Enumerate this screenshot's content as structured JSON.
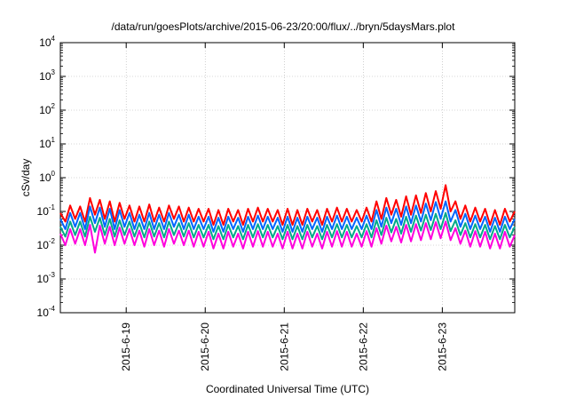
{
  "chart_data": {
    "type": "line",
    "title": "/data/run/goesPlots/archive/2015-06-23/20:00/flux/../bryn/5daysMars.plot",
    "xlabel": "Coordinated Universal Time (UTC)",
    "ylabel": "cSv/day",
    "yscale": "log",
    "ylim": [
      0.0001,
      10000
    ],
    "xlim": [
      "2015-06-18 04:00",
      "2015-06-23 22:00"
    ],
    "yticks": [
      {
        "base": "10",
        "exp": "-4",
        "value": 0.0001
      },
      {
        "base": "10",
        "exp": "-3",
        "value": 0.001
      },
      {
        "base": "10",
        "exp": "-2",
        "value": 0.01
      },
      {
        "base": "10",
        "exp": "-1",
        "value": 0.1
      },
      {
        "base": "10",
        "exp": "0",
        "value": 1
      },
      {
        "base": "10",
        "exp": "1",
        "value": 10
      },
      {
        "base": "10",
        "exp": "2",
        "value": 100
      },
      {
        "base": "10",
        "exp": "3",
        "value": 1000
      },
      {
        "base": "10",
        "exp": "4",
        "value": 10000
      }
    ],
    "xticks": [
      {
        "label": "2015-6-19",
        "value": "2015-06-19 00:00"
      },
      {
        "label": "2015-6-20",
        "value": "2015-06-20 00:00"
      },
      {
        "label": "2015-6-21",
        "value": "2015-06-21 00:00"
      },
      {
        "label": "2015-6-22",
        "value": "2015-06-22 00:00"
      },
      {
        "label": "2015-6-23",
        "value": "2015-06-23 00:00"
      }
    ],
    "grid": true,
    "series": [
      {
        "color": "#ff0000",
        "x": [
          "2015-06-18 04:00",
          "2015-06-18 05:30",
          "2015-06-18 07:00",
          "2015-06-18 08:30",
          "2015-06-18 10:00",
          "2015-06-18 11:30",
          "2015-06-18 13:00",
          "2015-06-18 14:30",
          "2015-06-18 16:00",
          "2015-06-18 17:30",
          "2015-06-18 19:00",
          "2015-06-18 20:30",
          "2015-06-18 22:00",
          "2015-06-18 23:30",
          "2015-06-19 01:00",
          "2015-06-19 02:30",
          "2015-06-19 04:00",
          "2015-06-19 05:30",
          "2015-06-19 07:00",
          "2015-06-19 08:30",
          "2015-06-19 10:00",
          "2015-06-19 11:30",
          "2015-06-19 13:00",
          "2015-06-19 14:30",
          "2015-06-19 16:00",
          "2015-06-19 17:30",
          "2015-06-19 19:00",
          "2015-06-19 20:30",
          "2015-06-19 22:00",
          "2015-06-19 23:30",
          "2015-06-20 01:00",
          "2015-06-20 02:30",
          "2015-06-20 04:00",
          "2015-06-20 05:30",
          "2015-06-20 07:00",
          "2015-06-20 08:30",
          "2015-06-20 10:00",
          "2015-06-20 11:30",
          "2015-06-20 13:00",
          "2015-06-20 14:30",
          "2015-06-20 16:00",
          "2015-06-20 17:30",
          "2015-06-20 19:00",
          "2015-06-20 20:30",
          "2015-06-20 22:00",
          "2015-06-20 23:30",
          "2015-06-21 01:00",
          "2015-06-21 02:30",
          "2015-06-21 04:00",
          "2015-06-21 05:30",
          "2015-06-21 07:00",
          "2015-06-21 08:30",
          "2015-06-21 10:00",
          "2015-06-21 11:30",
          "2015-06-21 13:00",
          "2015-06-21 14:30",
          "2015-06-21 16:00",
          "2015-06-21 17:30",
          "2015-06-21 19:00",
          "2015-06-21 20:30",
          "2015-06-21 22:00",
          "2015-06-21 23:30",
          "2015-06-22 01:00",
          "2015-06-22 02:30",
          "2015-06-22 04:00",
          "2015-06-22 05:30",
          "2015-06-22 07:00",
          "2015-06-22 08:30",
          "2015-06-22 10:00",
          "2015-06-22 11:30",
          "2015-06-22 13:00",
          "2015-06-22 14:30",
          "2015-06-22 16:00",
          "2015-06-22 17:30",
          "2015-06-22 19:00",
          "2015-06-22 20:30",
          "2015-06-22 22:00",
          "2015-06-22 23:30",
          "2015-06-23 01:00",
          "2015-06-23 02:30",
          "2015-06-23 04:00",
          "2015-06-23 05:30",
          "2015-06-23 07:00",
          "2015-06-23 08:30",
          "2015-06-23 10:00",
          "2015-06-23 11:30",
          "2015-06-23 13:00",
          "2015-06-23 14:30",
          "2015-06-23 16:00",
          "2015-06-23 17:30",
          "2015-06-23 19:00",
          "2015-06-23 20:30",
          "2015-06-23 22:00"
        ],
        "y": [
          0.09,
          0.05,
          0.15,
          0.06,
          0.14,
          0.05,
          0.25,
          0.08,
          0.22,
          0.06,
          0.2,
          0.05,
          0.18,
          0.06,
          0.15,
          0.05,
          0.14,
          0.05,
          0.16,
          0.05,
          0.13,
          0.05,
          0.15,
          0.06,
          0.14,
          0.05,
          0.13,
          0.05,
          0.12,
          0.05,
          0.12,
          0.04,
          0.11,
          0.04,
          0.12,
          0.05,
          0.11,
          0.04,
          0.12,
          0.05,
          0.13,
          0.05,
          0.12,
          0.05,
          0.11,
          0.04,
          0.12,
          0.04,
          0.11,
          0.04,
          0.12,
          0.05,
          0.11,
          0.04,
          0.12,
          0.05,
          0.13,
          0.05,
          0.12,
          0.05,
          0.11,
          0.05,
          0.13,
          0.05,
          0.2,
          0.06,
          0.25,
          0.08,
          0.22,
          0.07,
          0.28,
          0.08,
          0.3,
          0.09,
          0.35,
          0.1,
          0.4,
          0.12,
          0.6,
          0.1,
          0.2,
          0.06,
          0.15,
          0.05,
          0.13,
          0.05,
          0.12,
          0.04,
          0.11,
          0.04,
          0.12,
          0.05,
          0.1
        ]
      },
      {
        "color": "#0066ff",
        "x": [
          "2015-06-18 04:00",
          "2015-06-18 05:30",
          "2015-06-18 07:00",
          "2015-06-18 08:30",
          "2015-06-18 10:00",
          "2015-06-18 11:30",
          "2015-06-18 13:00",
          "2015-06-18 14:30",
          "2015-06-18 16:00",
          "2015-06-18 17:30",
          "2015-06-18 19:00",
          "2015-06-18 20:30",
          "2015-06-18 22:00",
          "2015-06-18 23:30",
          "2015-06-19 01:00",
          "2015-06-19 02:30",
          "2015-06-19 04:00",
          "2015-06-19 05:30",
          "2015-06-19 07:00",
          "2015-06-19 08:30",
          "2015-06-19 10:00",
          "2015-06-19 11:30",
          "2015-06-19 13:00",
          "2015-06-19 14:30",
          "2015-06-19 16:00",
          "2015-06-19 17:30",
          "2015-06-19 19:00",
          "2015-06-19 20:30",
          "2015-06-19 22:00",
          "2015-06-19 23:30",
          "2015-06-20 01:00",
          "2015-06-20 02:30",
          "2015-06-20 04:00",
          "2015-06-20 05:30",
          "2015-06-20 07:00",
          "2015-06-20 08:30",
          "2015-06-20 10:00",
          "2015-06-20 11:30",
          "2015-06-20 13:00",
          "2015-06-20 14:30",
          "2015-06-20 16:00",
          "2015-06-20 17:30",
          "2015-06-20 19:00",
          "2015-06-20 20:30",
          "2015-06-20 22:00",
          "2015-06-20 23:30",
          "2015-06-21 01:00",
          "2015-06-21 02:30",
          "2015-06-21 04:00",
          "2015-06-21 05:30",
          "2015-06-21 07:00",
          "2015-06-21 08:30",
          "2015-06-21 10:00",
          "2015-06-21 11:30",
          "2015-06-21 13:00",
          "2015-06-21 14:30",
          "2015-06-21 16:00",
          "2015-06-21 17:30",
          "2015-06-21 19:00",
          "2015-06-21 20:30",
          "2015-06-21 22:00",
          "2015-06-21 23:30",
          "2015-06-22 01:00",
          "2015-06-22 02:30",
          "2015-06-22 04:00",
          "2015-06-22 05:30",
          "2015-06-22 07:00",
          "2015-06-22 08:30",
          "2015-06-22 10:00",
          "2015-06-22 11:30",
          "2015-06-22 13:00",
          "2015-06-22 14:30",
          "2015-06-22 16:00",
          "2015-06-22 17:30",
          "2015-06-22 19:00",
          "2015-06-22 20:30",
          "2015-06-22 22:00",
          "2015-06-22 23:30",
          "2015-06-23 01:00",
          "2015-06-23 02:30",
          "2015-06-23 04:00",
          "2015-06-23 05:30",
          "2015-06-23 07:00",
          "2015-06-23 08:30",
          "2015-06-23 10:00",
          "2015-06-23 11:30",
          "2015-06-23 13:00",
          "2015-06-23 14:30",
          "2015-06-23 16:00",
          "2015-06-23 17:30",
          "2015-06-23 19:00",
          "2015-06-23 20:30",
          "2015-06-23 22:00"
        ],
        "y": [
          0.06,
          0.03,
          0.09,
          0.035,
          0.09,
          0.03,
          0.14,
          0.045,
          0.13,
          0.035,
          0.12,
          0.03,
          0.11,
          0.035,
          0.09,
          0.03,
          0.08,
          0.03,
          0.09,
          0.03,
          0.08,
          0.03,
          0.09,
          0.035,
          0.08,
          0.03,
          0.08,
          0.03,
          0.07,
          0.03,
          0.07,
          0.025,
          0.065,
          0.025,
          0.07,
          0.03,
          0.065,
          0.025,
          0.07,
          0.03,
          0.075,
          0.03,
          0.07,
          0.03,
          0.065,
          0.025,
          0.07,
          0.025,
          0.065,
          0.025,
          0.07,
          0.03,
          0.065,
          0.025,
          0.07,
          0.03,
          0.075,
          0.03,
          0.07,
          0.03,
          0.065,
          0.03,
          0.075,
          0.03,
          0.11,
          0.035,
          0.13,
          0.045,
          0.12,
          0.04,
          0.14,
          0.045,
          0.15,
          0.05,
          0.17,
          0.055,
          0.19,
          0.06,
          0.2,
          0.05,
          0.11,
          0.035,
          0.085,
          0.03,
          0.075,
          0.03,
          0.07,
          0.025,
          0.065,
          0.025,
          0.07,
          0.03,
          0.06
        ]
      },
      {
        "color": "#00aa88",
        "x": [
          "2015-06-18 04:00",
          "2015-06-18 05:30",
          "2015-06-18 07:00",
          "2015-06-18 08:30",
          "2015-06-18 10:00",
          "2015-06-18 11:30",
          "2015-06-18 13:00",
          "2015-06-18 14:30",
          "2015-06-18 16:00",
          "2015-06-18 17:30",
          "2015-06-18 19:00",
          "2015-06-18 20:30",
          "2015-06-18 22:00",
          "2015-06-18 23:30",
          "2015-06-19 01:00",
          "2015-06-19 02:30",
          "2015-06-19 04:00",
          "2015-06-19 05:30",
          "2015-06-19 07:00",
          "2015-06-19 08:30",
          "2015-06-19 10:00",
          "2015-06-19 11:30",
          "2015-06-19 13:00",
          "2015-06-19 14:30",
          "2015-06-19 16:00",
          "2015-06-19 17:30",
          "2015-06-19 19:00",
          "2015-06-19 20:30",
          "2015-06-19 22:00",
          "2015-06-19 23:30",
          "2015-06-20 01:00",
          "2015-06-20 02:30",
          "2015-06-20 04:00",
          "2015-06-20 05:30",
          "2015-06-20 07:00",
          "2015-06-20 08:30",
          "2015-06-20 10:00",
          "2015-06-20 11:30",
          "2015-06-20 13:00",
          "2015-06-20 14:30",
          "2015-06-20 16:00",
          "2015-06-20 17:30",
          "2015-06-20 19:00",
          "2015-06-20 20:30",
          "2015-06-20 22:00",
          "2015-06-20 23:30",
          "2015-06-21 01:00",
          "2015-06-21 02:30",
          "2015-06-21 04:00",
          "2015-06-21 05:30",
          "2015-06-21 07:00",
          "2015-06-21 08:30",
          "2015-06-21 10:00",
          "2015-06-21 11:30",
          "2015-06-21 13:00",
          "2015-06-21 14:30",
          "2015-06-21 16:00",
          "2015-06-21 17:30",
          "2015-06-21 19:00",
          "2015-06-21 20:30",
          "2015-06-21 22:00",
          "2015-06-21 23:30",
          "2015-06-22 01:00",
          "2015-06-22 02:30",
          "2015-06-22 04:00",
          "2015-06-22 05:30",
          "2015-06-22 07:00",
          "2015-06-22 08:30",
          "2015-06-22 10:00",
          "2015-06-22 11:30",
          "2015-06-22 13:00",
          "2015-06-22 14:30",
          "2015-06-22 16:00",
          "2015-06-22 17:30",
          "2015-06-22 19:00",
          "2015-06-22 20:30",
          "2015-06-22 22:00",
          "2015-06-22 23:30",
          "2015-06-23 01:00",
          "2015-06-23 02:30",
          "2015-06-23 04:00",
          "2015-06-23 05:30",
          "2015-06-23 07:00",
          "2015-06-23 08:30",
          "2015-06-23 10:00",
          "2015-06-23 11:30",
          "2015-06-23 13:00",
          "2015-06-23 14:30",
          "2015-06-23 16:00",
          "2015-06-23 17:30",
          "2015-06-23 19:00",
          "2015-06-23 20:30",
          "2015-06-23 22:00"
        ],
        "y": [
          0.035,
          0.018,
          0.05,
          0.02,
          0.05,
          0.018,
          0.07,
          0.025,
          0.065,
          0.02,
          0.06,
          0.018,
          0.055,
          0.02,
          0.05,
          0.018,
          0.045,
          0.017,
          0.05,
          0.018,
          0.045,
          0.017,
          0.05,
          0.02,
          0.045,
          0.018,
          0.045,
          0.017,
          0.04,
          0.017,
          0.04,
          0.015,
          0.037,
          0.015,
          0.04,
          0.017,
          0.037,
          0.015,
          0.04,
          0.017,
          0.042,
          0.017,
          0.04,
          0.017,
          0.037,
          0.015,
          0.04,
          0.015,
          0.037,
          0.015,
          0.04,
          0.017,
          0.037,
          0.015,
          0.04,
          0.017,
          0.042,
          0.017,
          0.04,
          0.017,
          0.037,
          0.017,
          0.042,
          0.017,
          0.055,
          0.02,
          0.065,
          0.024,
          0.06,
          0.022,
          0.07,
          0.025,
          0.075,
          0.027,
          0.08,
          0.028,
          0.085,
          0.03,
          0.09,
          0.026,
          0.055,
          0.02,
          0.045,
          0.017,
          0.042,
          0.017,
          0.04,
          0.015,
          0.037,
          0.015,
          0.04,
          0.017,
          0.035
        ]
      },
      {
        "color": "#ff00dd",
        "x": [
          "2015-06-18 04:00",
          "2015-06-18 05:30",
          "2015-06-18 07:00",
          "2015-06-18 08:30",
          "2015-06-18 10:00",
          "2015-06-18 11:30",
          "2015-06-18 13:00",
          "2015-06-18 14:30",
          "2015-06-18 16:00",
          "2015-06-18 17:30",
          "2015-06-18 19:00",
          "2015-06-18 20:30",
          "2015-06-18 22:00",
          "2015-06-18 23:30",
          "2015-06-19 01:00",
          "2015-06-19 02:30",
          "2015-06-19 04:00",
          "2015-06-19 05:30",
          "2015-06-19 07:00",
          "2015-06-19 08:30",
          "2015-06-19 10:00",
          "2015-06-19 11:30",
          "2015-06-19 13:00",
          "2015-06-19 14:30",
          "2015-06-19 16:00",
          "2015-06-19 17:30",
          "2015-06-19 19:00",
          "2015-06-19 20:30",
          "2015-06-19 22:00",
          "2015-06-19 23:30",
          "2015-06-20 01:00",
          "2015-06-20 02:30",
          "2015-06-20 04:00",
          "2015-06-20 05:30",
          "2015-06-20 07:00",
          "2015-06-20 08:30",
          "2015-06-20 10:00",
          "2015-06-20 11:30",
          "2015-06-20 13:00",
          "2015-06-20 14:30",
          "2015-06-20 16:00",
          "2015-06-20 17:30",
          "2015-06-20 19:00",
          "2015-06-20 20:30",
          "2015-06-20 22:00",
          "2015-06-20 23:30",
          "2015-06-21 01:00",
          "2015-06-21 02:30",
          "2015-06-21 04:00",
          "2015-06-21 05:30",
          "2015-06-21 07:00",
          "2015-06-21 08:30",
          "2015-06-21 10:00",
          "2015-06-21 11:30",
          "2015-06-21 13:00",
          "2015-06-21 14:30",
          "2015-06-21 16:00",
          "2015-06-21 17:30",
          "2015-06-21 19:00",
          "2015-06-21 20:30",
          "2015-06-21 22:00",
          "2015-06-21 23:30",
          "2015-06-22 01:00",
          "2015-06-22 02:30",
          "2015-06-22 04:00",
          "2015-06-22 05:30",
          "2015-06-22 07:00",
          "2015-06-22 08:30",
          "2015-06-22 10:00",
          "2015-06-22 11:30",
          "2015-06-22 13:00",
          "2015-06-22 14:30",
          "2015-06-22 16:00",
          "2015-06-22 17:30",
          "2015-06-22 19:00",
          "2015-06-22 20:30",
          "2015-06-22 22:00",
          "2015-06-22 23:30",
          "2015-06-23 01:00",
          "2015-06-23 02:30",
          "2015-06-23 04:00",
          "2015-06-23 05:30",
          "2015-06-23 07:00",
          "2015-06-23 08:30",
          "2015-06-23 10:00",
          "2015-06-23 11:30",
          "2015-06-23 13:00",
          "2015-06-23 14:30",
          "2015-06-23 16:00",
          "2015-06-23 17:30",
          "2015-06-23 19:00",
          "2015-06-23 20:30",
          "2015-06-23 22:00"
        ],
        "y": [
          0.022,
          0.01,
          0.03,
          0.011,
          0.03,
          0.01,
          0.04,
          0.006,
          0.038,
          0.011,
          0.035,
          0.01,
          0.033,
          0.011,
          0.03,
          0.01,
          0.027,
          0.009,
          0.03,
          0.01,
          0.027,
          0.009,
          0.03,
          0.011,
          0.027,
          0.01,
          0.027,
          0.009,
          0.025,
          0.009,
          0.025,
          0.008,
          0.022,
          0.008,
          0.025,
          0.009,
          0.022,
          0.008,
          0.025,
          0.009,
          0.026,
          0.009,
          0.025,
          0.009,
          0.022,
          0.008,
          0.025,
          0.008,
          0.022,
          0.008,
          0.025,
          0.009,
          0.022,
          0.008,
          0.025,
          0.009,
          0.026,
          0.009,
          0.025,
          0.009,
          0.022,
          0.009,
          0.026,
          0.009,
          0.032,
          0.011,
          0.038,
          0.013,
          0.035,
          0.012,
          0.04,
          0.013,
          0.042,
          0.014,
          0.045,
          0.015,
          0.048,
          0.016,
          0.05,
          0.014,
          0.032,
          0.011,
          0.027,
          0.009,
          0.026,
          0.009,
          0.025,
          0.008,
          0.022,
          0.008,
          0.025,
          0.009,
          0.02
        ]
      }
    ]
  }
}
